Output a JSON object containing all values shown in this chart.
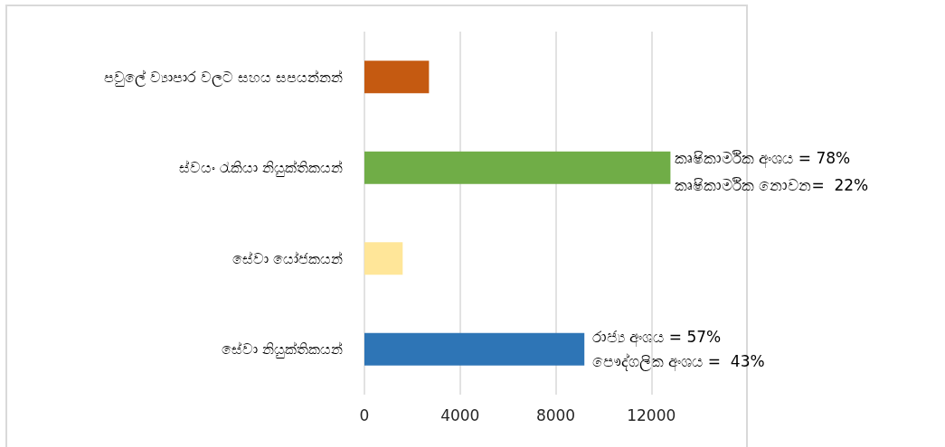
{
  "chart_data": {
    "type": "bar",
    "orientation": "horizontal",
    "categories": [
      "පවුලේ ව්‍යාපාර වලට සහය සපයන්නන්",
      "ස්වයං රැකියා නියුක්තිකයන්",
      "සේවා යෝජකයන්",
      "සේවා නියුක්තිකයන්"
    ],
    "values": [
      2700,
      12800,
      1600,
      9200
    ],
    "colors": [
      "#c55a11",
      "#70ad47",
      "#ffe699",
      "#2e75b6"
    ],
    "xlim": [
      0,
      16000
    ],
    "xticks": [
      0,
      4000,
      8000,
      12000
    ],
    "grid": "x",
    "annotations": [
      "කෘෂිකාර්මික අංශය = 78%",
      "කෘෂිකාර්මික නොවන=  22%",
      "රාජ්‍ය අංශය = 57%",
      "පෞද්ගලික අංශය =  43%"
    ]
  }
}
